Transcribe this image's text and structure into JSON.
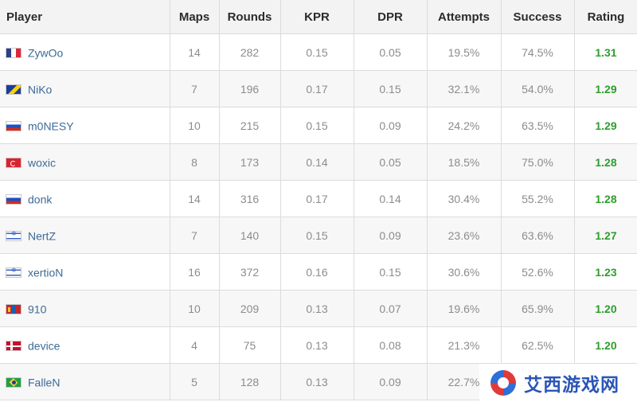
{
  "table": {
    "headers": [
      "Player",
      "Maps",
      "Rounds",
      "KPR",
      "DPR",
      "Attempts",
      "Success",
      "Rating"
    ],
    "rows": [
      {
        "flag": "france-flag-icon",
        "player": "ZywOo",
        "maps": "14",
        "rounds": "282",
        "kpr": "0.15",
        "dpr": "0.05",
        "attempts": "19.5%",
        "success": "74.5%",
        "rating": "1.31"
      },
      {
        "flag": "bosnia-flag-icon",
        "player": "NiKo",
        "maps": "7",
        "rounds": "196",
        "kpr": "0.17",
        "dpr": "0.15",
        "attempts": "32.1%",
        "success": "54.0%",
        "rating": "1.29"
      },
      {
        "flag": "russia-flag-icon",
        "player": "m0NESY",
        "maps": "10",
        "rounds": "215",
        "kpr": "0.15",
        "dpr": "0.09",
        "attempts": "24.2%",
        "success": "63.5%",
        "rating": "1.29"
      },
      {
        "flag": "turkey-flag-icon",
        "player": "woxic",
        "maps": "8",
        "rounds": "173",
        "kpr": "0.14",
        "dpr": "0.05",
        "attempts": "18.5%",
        "success": "75.0%",
        "rating": "1.28"
      },
      {
        "flag": "russia-flag-icon",
        "player": "donk",
        "maps": "14",
        "rounds": "316",
        "kpr": "0.17",
        "dpr": "0.14",
        "attempts": "30.4%",
        "success": "55.2%",
        "rating": "1.28"
      },
      {
        "flag": "israel-flag-icon",
        "player": "NertZ",
        "maps": "7",
        "rounds": "140",
        "kpr": "0.15",
        "dpr": "0.09",
        "attempts": "23.6%",
        "success": "63.6%",
        "rating": "1.27"
      },
      {
        "flag": "israel-flag-icon",
        "player": "xertioN",
        "maps": "16",
        "rounds": "372",
        "kpr": "0.16",
        "dpr": "0.15",
        "attempts": "30.6%",
        "success": "52.6%",
        "rating": "1.23"
      },
      {
        "flag": "mongolia-flag-icon",
        "player": "910",
        "maps": "10",
        "rounds": "209",
        "kpr": "0.13",
        "dpr": "0.07",
        "attempts": "19.6%",
        "success": "65.9%",
        "rating": "1.20"
      },
      {
        "flag": "denmark-flag-icon",
        "player": "device",
        "maps": "4",
        "rounds": "75",
        "kpr": "0.13",
        "dpr": "0.08",
        "attempts": "21.3%",
        "success": "62.5%",
        "rating": "1.20"
      },
      {
        "flag": "brazil-flag-icon",
        "player": "FalleN",
        "maps": "5",
        "rounds": "128",
        "kpr": "0.13",
        "dpr": "0.09",
        "attempts": "22.7%",
        "success": "",
        "rating": ""
      }
    ]
  },
  "colors": {
    "rating_green": "#2e9e2e",
    "player_link": "#3d6b96",
    "header_bg": "#f3f3f3",
    "row_alt_bg": "#f7f7f7"
  },
  "watermark": {
    "logo_icon": "aixi-logo-icon",
    "text": "艾西游戏网"
  }
}
